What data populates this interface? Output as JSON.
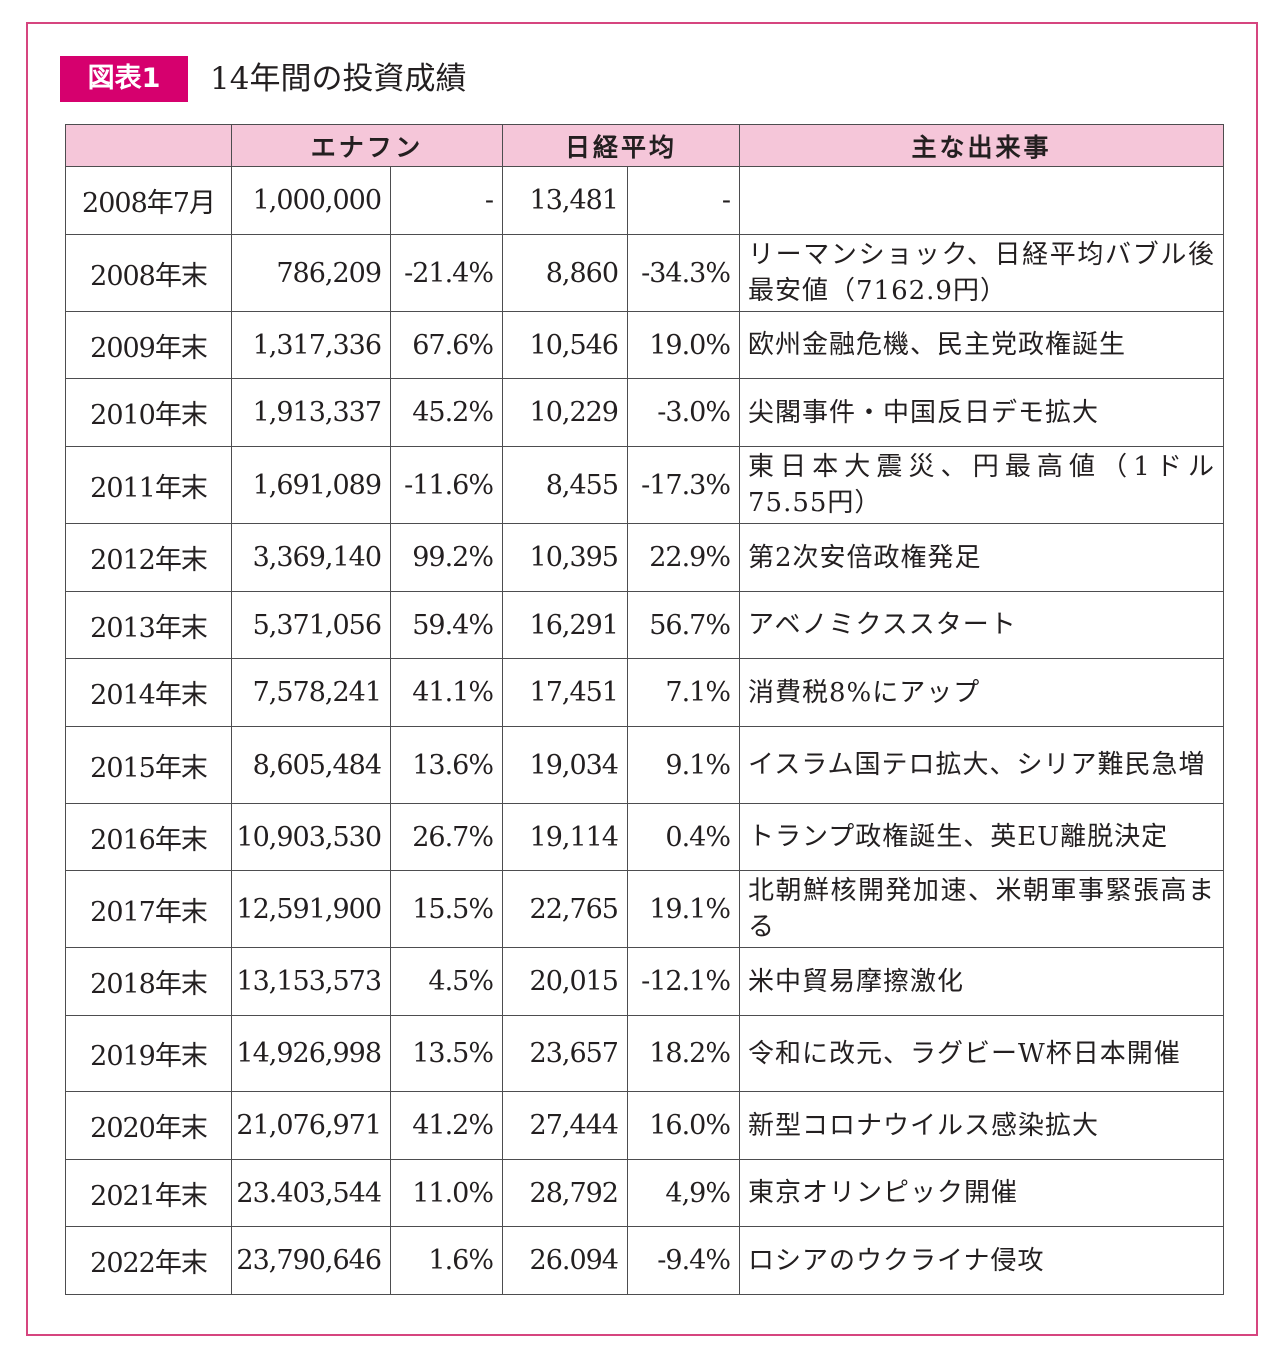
{
  "figure": {
    "badge": "図表1",
    "title": "14年間の投資成績"
  },
  "table": {
    "headers": [
      "",
      "エナフン",
      "日経平均",
      "主な出来事"
    ],
    "rows": [
      {
        "date": "2008年7月",
        "fund_value": "1,000,000",
        "fund_change": "-",
        "nikkei_value": "13,481",
        "nikkei_change": "-",
        "event": ""
      },
      {
        "date": "2008年末",
        "fund_value": "786,209",
        "fund_change": "-21.4%",
        "nikkei_value": "8,860",
        "nikkei_change": "-34.3%",
        "event": "リーマンショック、日経平均バブル後最安値（7162.9円）"
      },
      {
        "date": "2009年末",
        "fund_value": "1,317,336",
        "fund_change": "67.6%",
        "nikkei_value": "10,546",
        "nikkei_change": "19.0%",
        "event": "欧州金融危機、民主党政権誕生"
      },
      {
        "date": "2010年末",
        "fund_value": "1,913,337",
        "fund_change": "45.2%",
        "nikkei_value": "10,229",
        "nikkei_change": "-3.0%",
        "event": "尖閣事件・中国反日デモ拡大"
      },
      {
        "date": "2011年末",
        "fund_value": "1,691,089",
        "fund_change": "-11.6%",
        "nikkei_value": "8,455",
        "nikkei_change": "-17.3%",
        "event": "東日本大震災、円最高値（1ドル75.55円）"
      },
      {
        "date": "2012年末",
        "fund_value": "3,369,140",
        "fund_change": "99.2%",
        "nikkei_value": "10,395",
        "nikkei_change": "22.9%",
        "event": "第2次安倍政権発足"
      },
      {
        "date": "2013年末",
        "fund_value": "5,371,056",
        "fund_change": "59.4%",
        "nikkei_value": "16,291",
        "nikkei_change": "56.7%",
        "event": "アベノミクススタート"
      },
      {
        "date": "2014年末",
        "fund_value": "7,578,241",
        "fund_change": "41.1%",
        "nikkei_value": "17,451",
        "nikkei_change": "7.1%",
        "event": "消費税8%にアップ"
      },
      {
        "date": "2015年末",
        "fund_value": "8,605,484",
        "fund_change": "13.6%",
        "nikkei_value": "19,034",
        "nikkei_change": "9.1%",
        "event": "イスラム国テロ拡大、シリア難民急増"
      },
      {
        "date": "2016年末",
        "fund_value": "10,903,530",
        "fund_change": "26.7%",
        "nikkei_value": "19,114",
        "nikkei_change": "0.4%",
        "event": "トランプ政権誕生、英EU離脱決定"
      },
      {
        "date": "2017年末",
        "fund_value": "12,591,900",
        "fund_change": "15.5%",
        "nikkei_value": "22,765",
        "nikkei_change": "19.1%",
        "event": "北朝鮮核開発加速、米朝軍事緊張高まる"
      },
      {
        "date": "2018年末",
        "fund_value": "13,153,573",
        "fund_change": "4.5%",
        "nikkei_value": "20,015",
        "nikkei_change": "-12.1%",
        "event": "米中貿易摩擦激化"
      },
      {
        "date": "2019年末",
        "fund_value": "14,926,998",
        "fund_change": "13.5%",
        "nikkei_value": "23,657",
        "nikkei_change": "18.2%",
        "event": "令和に改元、ラグビーW杯日本開催"
      },
      {
        "date": "2020年末",
        "fund_value": "21,076,971",
        "fund_change": "41.2%",
        "nikkei_value": "27,444",
        "nikkei_change": "16.0%",
        "event": "新型コロナウイルス感染拡大"
      },
      {
        "date": "2021年末",
        "fund_value": "23.403,544",
        "fund_change": "11.0%",
        "nikkei_value": "28,792",
        "nikkei_change": "4,9%",
        "event": "東京オリンピック開催"
      },
      {
        "date": "2022年末",
        "fund_value": "23,790,646",
        "fund_change": "1.6%",
        "nikkei_value": "26.094",
        "nikkei_change": "-9.4%",
        "event": "ロシアのウクライナ侵攻"
      }
    ]
  }
}
